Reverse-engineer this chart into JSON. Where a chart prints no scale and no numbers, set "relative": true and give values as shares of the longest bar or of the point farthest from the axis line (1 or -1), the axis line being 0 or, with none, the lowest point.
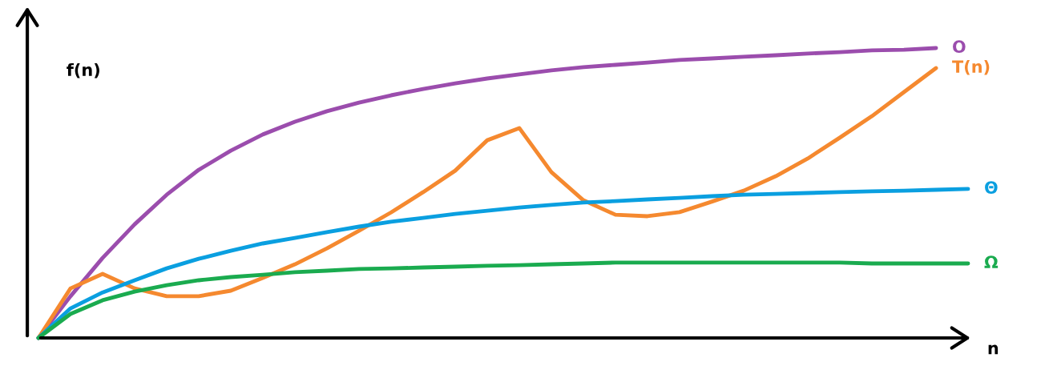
{
  "chart_data": {
    "type": "line",
    "relative": true,
    "xlabel": "n",
    "ylabel": "f(n)",
    "legend": false,
    "marker": "none",
    "line_style": "solid",
    "categories": [
      null,
      null,
      null,
      null,
      null,
      null,
      null,
      null,
      null,
      null,
      null,
      null,
      null,
      null,
      null,
      null,
      null,
      null,
      null,
      null,
      null,
      null,
      null,
      null,
      null,
      null,
      null,
      null,
      null,
      null
    ],
    "series": [
      {
        "name": "O",
        "color": "#9b4dad",
        "values": [
          0,
          0.144,
          0.276,
          0.392,
          0.494,
          0.58,
          0.646,
          0.702,
          0.746,
          0.782,
          0.812,
          0.837,
          0.859,
          0.878,
          0.895,
          0.909,
          0.923,
          0.934,
          0.942,
          0.95,
          0.959,
          0.964,
          0.97,
          0.975,
          0.981,
          0.986,
          0.992,
          0.994,
          1.0,
          null
        ]
      },
      {
        "name": "T(n)",
        "color": "#f5892f",
        "values": [
          0,
          0.171,
          0.221,
          0.171,
          0.144,
          0.144,
          0.163,
          0.207,
          0.254,
          0.309,
          0.37,
          0.433,
          0.503,
          0.577,
          0.682,
          0.724,
          0.572,
          0.475,
          0.425,
          0.42,
          0.434,
          0.47,
          0.508,
          0.558,
          0.619,
          0.691,
          0.765,
          0.848,
          0.931,
          null
        ]
      },
      {
        "name": "Θ",
        "color": "#0a9fe0",
        "values": [
          0,
          0.102,
          0.157,
          0.199,
          0.24,
          0.273,
          0.301,
          0.326,
          0.345,
          0.365,
          0.384,
          0.401,
          0.414,
          0.428,
          0.439,
          0.45,
          0.459,
          0.467,
          0.472,
          0.478,
          0.483,
          0.489,
          0.494,
          0.497,
          0.5,
          0.503,
          0.506,
          0.508,
          0.511,
          0.514
        ]
      },
      {
        "name": "Ω",
        "color": "#1aab4f",
        "values": [
          0,
          0.083,
          0.13,
          0.16,
          0.182,
          0.199,
          0.21,
          0.218,
          0.227,
          0.232,
          0.238,
          0.24,
          0.243,
          0.246,
          0.249,
          0.251,
          0.254,
          0.257,
          0.26,
          0.26,
          0.26,
          0.26,
          0.26,
          0.26,
          0.26,
          0.26,
          0.257,
          0.257,
          0.257,
          0.257
        ]
      }
    ]
  }
}
